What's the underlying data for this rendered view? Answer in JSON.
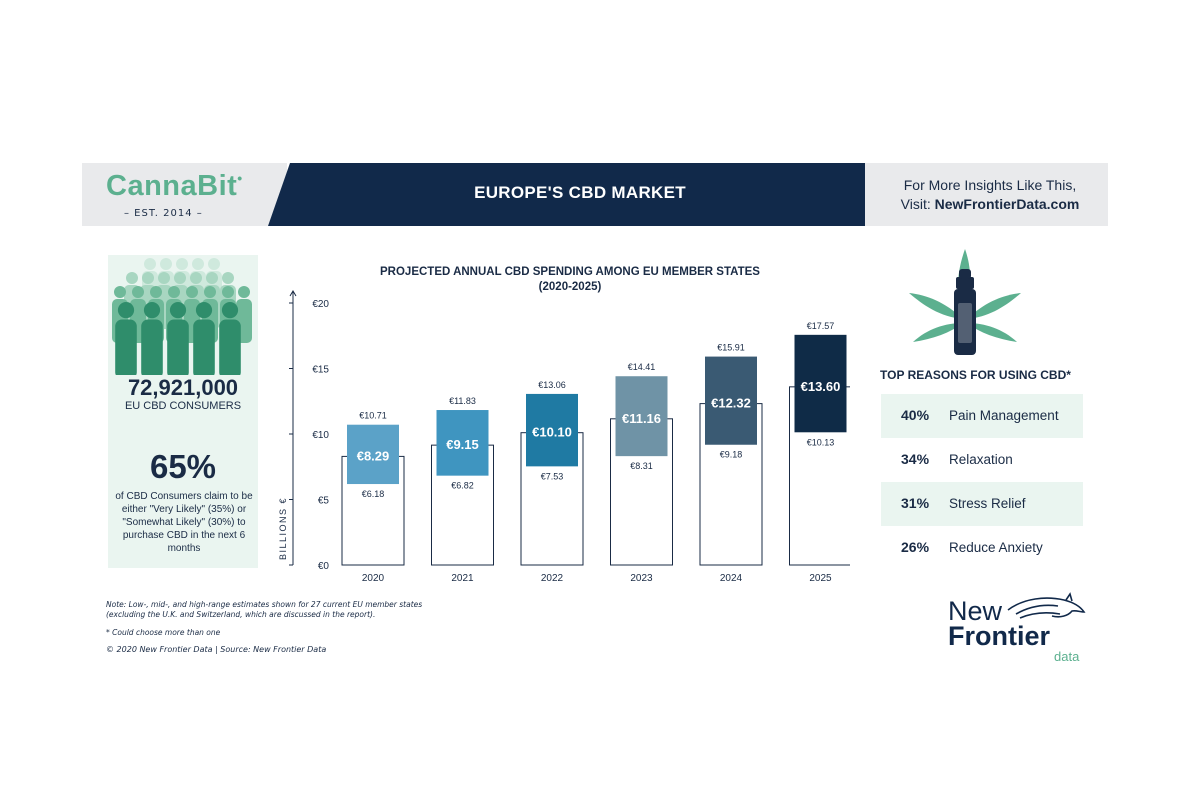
{
  "header": {
    "brand": "CannaBit",
    "brand_est": "– EST. 2014 –",
    "title": "EUROPE'S CBD MARKET",
    "insight_line1": "For More Insights Like This,",
    "insight_prefix": "Visit: ",
    "insight_link": "NewFrontierData.com"
  },
  "left_panel": {
    "consumers_value": "72,921,000",
    "consumers_label": "EU CBD CONSUMERS",
    "stat_value": "65%",
    "stat_text": "of CBD Consumers claim to be either \"Very Likely\" (35%) or \"Somewhat Likely\" (30%) to purchase CBD in the next 6 months"
  },
  "chart_data": {
    "type": "bar",
    "title": "PROJECTED ANNUAL CBD SPENDING AMONG EU MEMBER STATES",
    "subtitle": "(2020-2025)",
    "ylabel": "BILLIONS €",
    "ylim": [
      0,
      20
    ],
    "yticks": [
      "€0",
      "€5",
      "€10",
      "€15",
      "€20"
    ],
    "categories": [
      "2020",
      "2021",
      "2022",
      "2023",
      "2024",
      "2025"
    ],
    "series": [
      {
        "name": "Low",
        "values": [
          6.18,
          6.82,
          7.53,
          8.31,
          9.18,
          10.13
        ],
        "labels": [
          "€6.18",
          "€6.82",
          "€7.53",
          "€8.31",
          "€9.18",
          "€10.13"
        ]
      },
      {
        "name": "Mid",
        "values": [
          8.29,
          9.15,
          10.1,
          11.16,
          12.32,
          13.6
        ],
        "labels": [
          "€8.29",
          "€9.15",
          "€10.10",
          "€11.16",
          "€12.32",
          "€13.60"
        ]
      },
      {
        "name": "High",
        "values": [
          10.71,
          11.83,
          13.06,
          14.41,
          15.91,
          17.57
        ],
        "labels": [
          "€10.71",
          "€11.83",
          "€13.06",
          "€14.41",
          "€15.91",
          "€17.57"
        ]
      }
    ],
    "colors": [
      "#5ba2c8",
      "#3f95c0",
      "#1f7aa3",
      "#6f93a6",
      "#3a5a73",
      "#0f2b47"
    ]
  },
  "reasons": {
    "title": "TOP REASONS FOR USING CBD*",
    "items": [
      {
        "pct": "40%",
        "label": "Pain Management"
      },
      {
        "pct": "34%",
        "label": "Relaxation"
      },
      {
        "pct": "31%",
        "label": "Stress Relief"
      },
      {
        "pct": "26%",
        "label": "Reduce Anxiety"
      }
    ]
  },
  "notes": {
    "note1": "Note: Low-, mid-, and high-range estimates shown for 27 current EU member states",
    "note2": "(excluding the U.K. and Switzerland, which are discussed in the report).",
    "note3": "* Could choose more than one",
    "copyright": "© 2020 New Frontier Data | Source: New Frontier Data"
  },
  "footer_logo": {
    "line1": "New",
    "line2": "Frontier",
    "line3": "data"
  },
  "colors": {
    "navy": "#11294a",
    "mint": "#5cb08f",
    "light_mint": "#eaf5f0"
  }
}
